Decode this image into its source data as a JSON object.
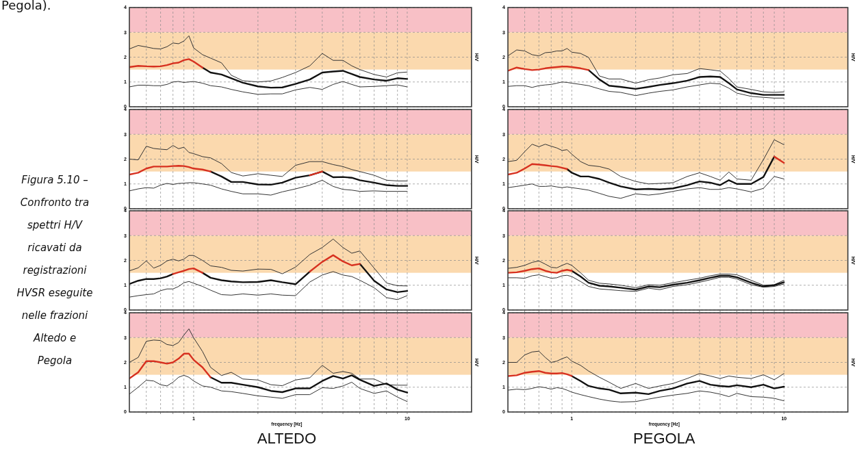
{
  "chart_data": [
    {
      "type": "line",
      "x": [
        0.5,
        0.55,
        0.6,
        0.65,
        0.7,
        0.75,
        0.8,
        0.85,
        0.9,
        0.95,
        1,
        1.1,
        1.2,
        1.35,
        1.5,
        1.7,
        2,
        2.3,
        2.6,
        3,
        3.5,
        4,
        4.5,
        5,
        5.5,
        6,
        7,
        8,
        9,
        10
      ],
      "xlim": [
        0.5,
        20
      ],
      "ylim": [
        0,
        4
      ],
      "log": "x",
      "grid": true,
      "tick_labels": "y",
      "ylabel": "H/V",
      "xticks": [
        {
          "value": 0.6,
          "label": null
        },
        {
          "value": 0.7,
          "label": null
        },
        {
          "value": 0.8,
          "label": null
        },
        {
          "value": 0.9,
          "label": null
        },
        {
          "value": 1,
          "label": null
        },
        {
          "value": 2,
          "label": null
        },
        {
          "value": 3,
          "label": null
        },
        {
          "value": 4,
          "label": null
        },
        {
          "value": 5,
          "label": null
        },
        {
          "value": 6,
          "label": null
        },
        {
          "value": 7,
          "label": null
        },
        {
          "value": 8,
          "label": null
        },
        {
          "value": 9,
          "label": null
        },
        {
          "value": 10,
          "label": null
        }
      ],
      "yticks": [
        0,
        1,
        2,
        3,
        4
      ],
      "bands": [
        {
          "axis": "y",
          "from": 3,
          "to": 4,
          "color": "#f8c0c6"
        },
        {
          "axis": "y",
          "from": 1.5,
          "to": 3,
          "color": "#fbd9ae"
        }
      ],
      "series": [
        {
          "color": "#333333",
          "values": [
            2.33,
            2.47,
            2.41,
            2.35,
            2.33,
            2.42,
            2.57,
            2.54,
            2.65,
            2.86,
            2.37,
            2.1,
            1.96,
            1.77,
            1.27,
            1.05,
            1.0,
            1.04,
            1.18,
            1.38,
            1.65,
            2.15,
            1.87,
            1.87,
            1.65,
            1.5,
            1.3,
            1.2,
            1.37,
            1.4
          ]
        },
        {
          "color": "#111111",
          "values": [
            null,
            null,
            null,
            null,
            null,
            null,
            null,
            null,
            null,
            null,
            null,
            1.58,
            1.38,
            1.3,
            1.15,
            0.97,
            0.82,
            0.77,
            0.78,
            0.92,
            1.1,
            1.38,
            1.42,
            1.45,
            1.32,
            1.2,
            1.1,
            1.05,
            1.15,
            1.12
          ]
        },
        {
          "color": "#333333",
          "values": [
            0.8,
            0.87,
            0.87,
            0.85,
            0.85,
            0.9,
            1.0,
            1.02,
            0.98,
            1.0,
            1.02,
            0.95,
            0.85,
            0.8,
            0.7,
            0.6,
            0.5,
            0.52,
            0.52,
            0.68,
            0.78,
            0.7,
            0.9,
            1.02,
            0.9,
            0.8,
            0.82,
            0.85,
            0.88,
            0.8
          ]
        },
        {
          "color": "#d7301f",
          "values": [
            1.6,
            1.65,
            1.63,
            1.62,
            1.63,
            1.68,
            1.75,
            1.78,
            1.88,
            1.92,
            1.82,
            1.58,
            null,
            null,
            null,
            null,
            null,
            null,
            null,
            null,
            null,
            null,
            null,
            null,
            null,
            null,
            null,
            null,
            null,
            null
          ]
        }
      ]
    },
    {
      "type": "line",
      "x": [
        0.5,
        0.55,
        0.6,
        0.65,
        0.7,
        0.75,
        0.8,
        0.85,
        0.9,
        0.95,
        1,
        1.1,
        1.2,
        1.35,
        1.5,
        1.7,
        2,
        2.3,
        2.6,
        3,
        3.5,
        4,
        4.5,
        5,
        5.5,
        6,
        7,
        8,
        9,
        10
      ],
      "xlim": [
        0.5,
        20
      ],
      "ylim": [
        0,
        4
      ],
      "log": "x",
      "grid": true,
      "tick_labels": "y",
      "ylabel": "H/V",
      "xticks": [
        {
          "value": 0.6,
          "label": null
        },
        {
          "value": 0.7,
          "label": null
        },
        {
          "value": 0.8,
          "label": null
        },
        {
          "value": 0.9,
          "label": null
        },
        {
          "value": 1,
          "label": null
        },
        {
          "value": 2,
          "label": null
        },
        {
          "value": 3,
          "label": null
        },
        {
          "value": 4,
          "label": null
        },
        {
          "value": 5,
          "label": null
        },
        {
          "value": 6,
          "label": null
        },
        {
          "value": 7,
          "label": null
        },
        {
          "value": 8,
          "label": null
        },
        {
          "value": 9,
          "label": null
        },
        {
          "value": 10,
          "label": null
        }
      ],
      "yticks": [
        0,
        1,
        2,
        3,
        4
      ],
      "bands": [
        {
          "axis": "y",
          "from": 3,
          "to": 4,
          "color": "#f8c0c6"
        },
        {
          "axis": "y",
          "from": 1.5,
          "to": 3,
          "color": "#fbd9ae"
        }
      ],
      "series": [
        {
          "color": "#333333",
          "values": [
            2.05,
            2.29,
            2.25,
            2.1,
            2.05,
            2.18,
            2.2,
            2.25,
            2.25,
            2.35,
            2.2,
            2.15,
            1.99,
            1.24,
            1.12,
            1.12,
            0.95,
            1.09,
            1.16,
            1.29,
            1.34,
            1.54,
            1.49,
            1.44,
            1.14,
            0.8,
            0.7,
            0.6,
            0.58,
            0.6
          ]
        },
        {
          "color": "#111111",
          "values": [
            null,
            null,
            null,
            null,
            null,
            null,
            null,
            null,
            null,
            null,
            null,
            null,
            1.48,
            1.1,
            0.85,
            0.8,
            0.72,
            0.8,
            0.88,
            0.95,
            1.05,
            1.2,
            1.22,
            1.2,
            0.95,
            0.7,
            0.55,
            0.48,
            0.48,
            0.48
          ]
        },
        {
          "color": "#333333",
          "values": [
            0.82,
            0.85,
            0.85,
            0.78,
            0.85,
            0.88,
            0.9,
            0.95,
            1.0,
            0.98,
            0.95,
            0.9,
            0.85,
            0.72,
            0.62,
            0.58,
            0.45,
            0.55,
            0.62,
            0.68,
            0.8,
            0.88,
            0.95,
            0.92,
            0.75,
            0.55,
            0.42,
            0.38,
            0.35,
            0.35
          ]
        },
        {
          "color": "#d7301f",
          "values": [
            1.45,
            1.58,
            1.52,
            1.48,
            1.5,
            1.55,
            1.58,
            1.6,
            1.62,
            1.62,
            1.6,
            1.55,
            1.48,
            null,
            null,
            null,
            null,
            null,
            null,
            null,
            null,
            null,
            null,
            null,
            null,
            null,
            null,
            null,
            null,
            null
          ]
        }
      ]
    },
    {
      "type": "line",
      "x": [
        0.5,
        0.55,
        0.6,
        0.65,
        0.7,
        0.75,
        0.8,
        0.85,
        0.9,
        0.95,
        1,
        1.1,
        1.2,
        1.35,
        1.5,
        1.7,
        2,
        2.3,
        2.6,
        3,
        3.5,
        4,
        4.5,
        5,
        5.5,
        6,
        7,
        8,
        9,
        10
      ],
      "xlim": [
        0.5,
        20
      ],
      "ylim": [
        0,
        4
      ],
      "log": "x",
      "grid": true,
      "tick_labels": "y",
      "ylabel": "H/V",
      "xticks": [
        {
          "value": 0.6,
          "label": null
        },
        {
          "value": 0.7,
          "label": null
        },
        {
          "value": 0.8,
          "label": null
        },
        {
          "value": 0.9,
          "label": null
        },
        {
          "value": 1,
          "label": null
        },
        {
          "value": 2,
          "label": null
        },
        {
          "value": 3,
          "label": null
        },
        {
          "value": 4,
          "label": null
        },
        {
          "value": 5,
          "label": null
        },
        {
          "value": 6,
          "label": null
        },
        {
          "value": 7,
          "label": null
        },
        {
          "value": 8,
          "label": null
        },
        {
          "value": 9,
          "label": null
        },
        {
          "value": 10,
          "label": null
        }
      ],
      "yticks": [
        0,
        1,
        2,
        3,
        4
      ],
      "bands": [
        {
          "axis": "y",
          "from": 3,
          "to": 4,
          "color": "#f8c0c6"
        },
        {
          "axis": "y",
          "from": 1.5,
          "to": 3,
          "color": "#fbd9ae"
        }
      ],
      "series": [
        {
          "color": "#333333",
          "values": [
            2.0,
            1.97,
            2.52,
            2.43,
            2.4,
            2.38,
            2.55,
            2.42,
            2.48,
            2.27,
            2.22,
            2.1,
            2.05,
            1.82,
            1.46,
            1.32,
            1.41,
            1.35,
            1.3,
            1.75,
            1.9,
            1.9,
            1.78,
            1.7,
            1.58,
            1.5,
            1.35,
            1.15,
            1.12,
            1.12
          ]
        },
        {
          "color": "#111111",
          "values": [
            null,
            null,
            null,
            null,
            null,
            null,
            null,
            null,
            null,
            null,
            null,
            null,
            1.5,
            1.3,
            1.08,
            1.08,
            0.98,
            0.97,
            1.05,
            1.25,
            1.35,
            1.5,
            1.27,
            1.28,
            1.25,
            1.15,
            1.05,
            0.95,
            0.92,
            0.92
          ]
        },
        {
          "color": "#333333",
          "values": [
            0.72,
            0.8,
            0.85,
            0.83,
            0.95,
            1.02,
            0.98,
            1.02,
            1.03,
            1.05,
            1.05,
            1.0,
            0.95,
            0.8,
            0.7,
            0.6,
            0.6,
            0.55,
            0.68,
            0.8,
            0.95,
            1.15,
            0.9,
            0.78,
            0.75,
            0.7,
            0.72,
            0.7,
            0.7,
            0.7
          ]
        },
        {
          "color": "#d7301f",
          "values": [
            1.38,
            1.45,
            1.62,
            1.7,
            1.7,
            1.7,
            1.72,
            1.73,
            1.72,
            1.68,
            1.62,
            1.58,
            1.5,
            null,
            null,
            null,
            null,
            null,
            null,
            null,
            1.35,
            1.5,
            null,
            null,
            null,
            null,
            null,
            null,
            null,
            null
          ]
        }
      ]
    },
    {
      "type": "line",
      "x": [
        0.5,
        0.55,
        0.6,
        0.65,
        0.7,
        0.75,
        0.8,
        0.85,
        0.9,
        0.95,
        1,
        1.1,
        1.2,
        1.35,
        1.5,
        1.7,
        2,
        2.3,
        2.6,
        3,
        3.5,
        4,
        4.5,
        5,
        5.5,
        6,
        7,
        8,
        9,
        10
      ],
      "xlim": [
        0.5,
        20
      ],
      "ylim": [
        0,
        4
      ],
      "log": "x",
      "grid": true,
      "tick_labels": "y",
      "ylabel": "H/V",
      "xticks": [
        {
          "value": 0.6,
          "label": null
        },
        {
          "value": 0.7,
          "label": null
        },
        {
          "value": 0.8,
          "label": null
        },
        {
          "value": 0.9,
          "label": null
        },
        {
          "value": 1,
          "label": null
        },
        {
          "value": 2,
          "label": null
        },
        {
          "value": 3,
          "label": null
        },
        {
          "value": 4,
          "label": null
        },
        {
          "value": 5,
          "label": null
        },
        {
          "value": 6,
          "label": null
        },
        {
          "value": 7,
          "label": null
        },
        {
          "value": 8,
          "label": null
        },
        {
          "value": 9,
          "label": null
        },
        {
          "value": 10,
          "label": null
        }
      ],
      "yticks": [
        0,
        1,
        2,
        3,
        4
      ],
      "bands": [
        {
          "axis": "y",
          "from": 3,
          "to": 4,
          "color": "#f8c0c6"
        },
        {
          "axis": "y",
          "from": 1.5,
          "to": 3,
          "color": "#fbd9ae"
        }
      ],
      "series": [
        {
          "color": "#333333",
          "values": [
            1.9,
            1.95,
            2.3,
            2.6,
            2.5,
            2.6,
            2.52,
            2.45,
            2.35,
            2.38,
            2.2,
            1.9,
            1.75,
            1.7,
            1.6,
            1.3,
            1.1,
            1.0,
            1.02,
            1.05,
            1.3,
            1.45,
            1.3,
            1.15,
            1.48,
            1.2,
            1.15,
            1.98,
            2.78,
            2.58
          ]
        },
        {
          "color": "#111111",
          "values": [
            null,
            null,
            null,
            null,
            null,
            null,
            null,
            null,
            null,
            1.6,
            1.45,
            1.3,
            1.3,
            1.2,
            1.05,
            0.9,
            0.78,
            0.8,
            0.78,
            0.82,
            0.95,
            1.1,
            1.05,
            0.95,
            1.15,
            1.0,
            1.0,
            1.28,
            2.1,
            null
          ]
        },
        {
          "color": "#333333",
          "values": [
            0.85,
            0.9,
            0.95,
            1.0,
            0.9,
            0.9,
            0.92,
            0.88,
            0.85,
            0.88,
            0.85,
            0.8,
            0.75,
            0.62,
            0.5,
            0.42,
            0.6,
            0.55,
            0.6,
            0.7,
            0.8,
            0.85,
            0.78,
            0.78,
            0.85,
            0.8,
            0.68,
            0.82,
            1.3,
            1.2
          ]
        },
        {
          "color": "#d7301f",
          "values": [
            1.38,
            1.45,
            1.62,
            1.8,
            1.78,
            1.75,
            1.72,
            1.7,
            1.65,
            1.6,
            null,
            null,
            null,
            null,
            null,
            null,
            null,
            null,
            null,
            null,
            null,
            null,
            null,
            null,
            null,
            null,
            null,
            null,
            2.1,
            1.85
          ]
        }
      ]
    },
    {
      "type": "line",
      "x": [
        0.5,
        0.55,
        0.6,
        0.65,
        0.7,
        0.75,
        0.8,
        0.85,
        0.9,
        0.95,
        1,
        1.1,
        1.2,
        1.35,
        1.5,
        1.7,
        2,
        2.3,
        2.6,
        3,
        3.5,
        4,
        4.5,
        5,
        5.5,
        6,
        7,
        8,
        9,
        10
      ],
      "xlim": [
        0.5,
        20
      ],
      "ylim": [
        0,
        4
      ],
      "log": "x",
      "grid": true,
      "tick_labels": "y",
      "ylabel": "H/V",
      "xticks": [
        {
          "value": 0.6,
          "label": null
        },
        {
          "value": 0.7,
          "label": null
        },
        {
          "value": 0.8,
          "label": null
        },
        {
          "value": 0.9,
          "label": null
        },
        {
          "value": 1,
          "label": null
        },
        {
          "value": 2,
          "label": null
        },
        {
          "value": 3,
          "label": null
        },
        {
          "value": 4,
          "label": null
        },
        {
          "value": 5,
          "label": null
        },
        {
          "value": 6,
          "label": null
        },
        {
          "value": 7,
          "label": null
        },
        {
          "value": 8,
          "label": null
        },
        {
          "value": 9,
          "label": null
        },
        {
          "value": 10,
          "label": null
        }
      ],
      "yticks": [
        0,
        1,
        2,
        3,
        4
      ],
      "bands": [
        {
          "axis": "y",
          "from": 3,
          "to": 4,
          "color": "#f8c0c6"
        },
        {
          "axis": "y",
          "from": 1.5,
          "to": 3,
          "color": "#fbd9ae"
        }
      ],
      "series": [
        {
          "color": "#333333",
          "values": [
            1.58,
            1.7,
            1.98,
            1.69,
            1.8,
            1.98,
            2.05,
            1.98,
            2.05,
            2.2,
            2.2,
            2.0,
            1.78,
            1.72,
            1.6,
            1.57,
            1.65,
            1.64,
            1.46,
            1.73,
            2.24,
            2.52,
            2.86,
            2.52,
            2.29,
            2.38,
            1.69,
            1.09,
            0.98,
            0.97
          ]
        },
        {
          "color": "#111111",
          "values": [
            1.05,
            1.18,
            1.25,
            1.25,
            1.28,
            1.35,
            1.45,
            null,
            null,
            null,
            null,
            1.5,
            1.3,
            1.2,
            1.15,
            1.12,
            1.13,
            1.2,
            1.12,
            1.04,
            1.55,
            null,
            null,
            null,
            null,
            1.86,
            1.18,
            0.83,
            0.72,
            0.77
          ]
        },
        {
          "color": "#333333",
          "values": [
            0.52,
            0.58,
            0.62,
            0.65,
            0.78,
            0.85,
            0.85,
            0.95,
            1.1,
            1.15,
            1.08,
            0.95,
            0.8,
            0.62,
            0.6,
            0.65,
            0.6,
            0.65,
            0.6,
            0.58,
            1.13,
            1.41,
            1.55,
            1.41,
            1.35,
            1.2,
            0.9,
            0.5,
            0.42,
            0.58
          ]
        },
        {
          "color": "#d7301f",
          "values": [
            null,
            null,
            null,
            null,
            null,
            null,
            1.45,
            1.52,
            1.58,
            1.65,
            1.68,
            1.5,
            null,
            null,
            null,
            null,
            null,
            null,
            null,
            null,
            1.55,
            1.94,
            2.21,
            1.96,
            1.8,
            1.86,
            null,
            null,
            null,
            null
          ]
        }
      ]
    },
    {
      "type": "line",
      "x": [
        0.5,
        0.55,
        0.6,
        0.65,
        0.7,
        0.75,
        0.8,
        0.85,
        0.9,
        0.95,
        1,
        1.1,
        1.2,
        1.35,
        1.5,
        1.7,
        2,
        2.3,
        2.6,
        3,
        3.5,
        4,
        4.5,
        5,
        5.5,
        6,
        7,
        8,
        9,
        10
      ],
      "xlim": [
        0.5,
        20
      ],
      "ylim": [
        0,
        4
      ],
      "log": "x",
      "grid": true,
      "tick_labels": "y",
      "ylabel": "H/V",
      "xticks": [
        {
          "value": 0.6,
          "label": null
        },
        {
          "value": 0.7,
          "label": null
        },
        {
          "value": 0.8,
          "label": null
        },
        {
          "value": 0.9,
          "label": null
        },
        {
          "value": 1,
          "label": null
        },
        {
          "value": 2,
          "label": null
        },
        {
          "value": 3,
          "label": null
        },
        {
          "value": 4,
          "label": null
        },
        {
          "value": 5,
          "label": null
        },
        {
          "value": 6,
          "label": null
        },
        {
          "value": 7,
          "label": null
        },
        {
          "value": 8,
          "label": null
        },
        {
          "value": 9,
          "label": null
        },
        {
          "value": 10,
          "label": null
        }
      ],
      "yticks": [
        0,
        1,
        2,
        3,
        4
      ],
      "bands": [
        {
          "axis": "y",
          "from": 3,
          "to": 4,
          "color": "#f8c0c6"
        },
        {
          "axis": "y",
          "from": 1.5,
          "to": 3,
          "color": "#fbd9ae"
        }
      ],
      "series": [
        {
          "color": "#333333",
          "values": [
            1.68,
            1.72,
            1.8,
            1.92,
            1.98,
            1.85,
            1.72,
            1.7,
            1.8,
            1.88,
            1.8,
            1.5,
            1.2,
            1.08,
            1.05,
            1.0,
            0.9,
            1.02,
            1.0,
            1.1,
            1.2,
            1.28,
            1.38,
            1.45,
            1.45,
            1.42,
            1.2,
            1.0,
            1.02,
            1.2
          ]
        },
        {
          "color": "#111111",
          "values": [
            null,
            null,
            null,
            null,
            null,
            null,
            null,
            null,
            null,
            null,
            1.58,
            1.35,
            1.1,
            0.98,
            0.95,
            0.9,
            0.82,
            0.95,
            0.92,
            1.02,
            1.1,
            1.2,
            1.3,
            1.38,
            1.38,
            1.32,
            1.1,
            0.95,
            1.0,
            1.12
          ]
        },
        {
          "color": "#333333",
          "values": [
            1.3,
            1.3,
            1.28,
            1.38,
            1.42,
            1.35,
            1.28,
            1.3,
            1.38,
            1.4,
            1.35,
            1.15,
            0.95,
            0.85,
            0.82,
            0.78,
            0.75,
            0.88,
            0.82,
            0.95,
            1.02,
            1.12,
            1.22,
            1.32,
            1.32,
            1.25,
            1.02,
            0.92,
            0.95,
            1.05
          ]
        },
        {
          "color": "#d7301f",
          "values": [
            1.5,
            1.52,
            1.58,
            1.65,
            1.68,
            1.58,
            1.52,
            1.5,
            1.58,
            1.62,
            1.58,
            null,
            null,
            null,
            null,
            null,
            null,
            null,
            null,
            null,
            null,
            null,
            null,
            null,
            null,
            null,
            null,
            null,
            null,
            null
          ]
        }
      ]
    },
    {
      "type": "line",
      "x": [
        0.5,
        0.55,
        0.6,
        0.65,
        0.7,
        0.75,
        0.8,
        0.85,
        0.9,
        0.95,
        1,
        1.1,
        1.2,
        1.35,
        1.5,
        1.7,
        2,
        2.3,
        2.6,
        3,
        3.5,
        4,
        4.5,
        5,
        5.5,
        6,
        7,
        8,
        9,
        10
      ],
      "xlim": [
        0.5,
        20
      ],
      "ylim": [
        0,
        4
      ],
      "log": "x",
      "grid": true,
      "ylabel": "H/V",
      "xlabel": "frequency [Hz]",
      "annotations": [
        "ALTEDO"
      ],
      "xticks": [
        {
          "value": 0.6,
          "label": null
        },
        {
          "value": 0.7,
          "label": null
        },
        {
          "value": 0.8,
          "label": null
        },
        {
          "value": 0.9,
          "label": null
        },
        {
          "value": 1,
          "label": "1"
        },
        {
          "value": 2,
          "label": null
        },
        {
          "value": 3,
          "label": null
        },
        {
          "value": 4,
          "label": null
        },
        {
          "value": 5,
          "label": null
        },
        {
          "value": 6,
          "label": null
        },
        {
          "value": 7,
          "label": null
        },
        {
          "value": 8,
          "label": null
        },
        {
          "value": 9,
          "label": null
        },
        {
          "value": 10,
          "label": "10"
        }
      ],
      "yticks": [
        0,
        1,
        2,
        3,
        4
      ],
      "bands": [
        {
          "axis": "y",
          "from": 3,
          "to": 4,
          "color": "#f8c0c6"
        },
        {
          "axis": "y",
          "from": 1.5,
          "to": 3,
          "color": "#fbd9ae"
        }
      ],
      "series": [
        {
          "color": "#333333",
          "values": [
            2.0,
            2.2,
            2.85,
            2.9,
            2.88,
            2.72,
            2.68,
            2.8,
            3.1,
            3.35,
            2.99,
            2.44,
            1.8,
            1.47,
            1.6,
            1.33,
            1.29,
            1.1,
            1.06,
            1.29,
            1.38,
            1.88,
            1.56,
            1.63,
            1.56,
            1.33,
            1.33,
            1.1,
            1.08,
            1.08
          ]
        },
        {
          "color": "#111111",
          "values": [
            null,
            null,
            null,
            null,
            null,
            null,
            null,
            null,
            null,
            null,
            null,
            null,
            1.4,
            1.18,
            1.18,
            1.1,
            1.0,
            0.85,
            0.8,
            0.95,
            0.95,
            1.25,
            1.45,
            1.35,
            1.48,
            1.3,
            1.05,
            1.15,
            0.9,
            0.78
          ]
        },
        {
          "color": "#333333",
          "values": [
            0.72,
            1.0,
            1.28,
            1.25,
            1.1,
            1.05,
            1.2,
            1.4,
            1.48,
            1.4,
            1.25,
            1.05,
            1.0,
            0.85,
            0.82,
            0.75,
            0.65,
            0.6,
            0.55,
            0.7,
            0.7,
            0.98,
            0.95,
            1.05,
            1.2,
            0.95,
            0.75,
            0.85,
            0.6,
            0.42
          ]
        },
        {
          "color": "#d7301f",
          "values": [
            1.35,
            1.6,
            2.05,
            2.05,
            2.0,
            1.95,
            2.0,
            2.15,
            2.35,
            2.35,
            2.1,
            1.8,
            1.4,
            null,
            null,
            null,
            null,
            null,
            null,
            null,
            null,
            null,
            null,
            null,
            null,
            null,
            null,
            null,
            null,
            null
          ]
        }
      ]
    },
    {
      "type": "line",
      "x": [
        0.5,
        0.55,
        0.6,
        0.65,
        0.7,
        0.75,
        0.8,
        0.85,
        0.9,
        0.95,
        1,
        1.1,
        1.2,
        1.35,
        1.5,
        1.7,
        2,
        2.3,
        2.6,
        3,
        3.5,
        4,
        4.5,
        5,
        5.5,
        6,
        7,
        8,
        9,
        10
      ],
      "xlim": [
        0.5,
        20
      ],
      "ylim": [
        0,
        4
      ],
      "log": "x",
      "grid": true,
      "ylabel": "H/V",
      "xlabel": "frequency [Hz]",
      "annotations": [
        "PEGOLA"
      ],
      "xticks": [
        {
          "value": 0.6,
          "label": null
        },
        {
          "value": 0.7,
          "label": null
        },
        {
          "value": 0.8,
          "label": null
        },
        {
          "value": 0.9,
          "label": null
        },
        {
          "value": 1,
          "label": "1"
        },
        {
          "value": 2,
          "label": null
        },
        {
          "value": 3,
          "label": null
        },
        {
          "value": 4,
          "label": null
        },
        {
          "value": 5,
          "label": null
        },
        {
          "value": 6,
          "label": null
        },
        {
          "value": 7,
          "label": null
        },
        {
          "value": 8,
          "label": null
        },
        {
          "value": 9,
          "label": null
        },
        {
          "value": 10,
          "label": "10"
        }
      ],
      "yticks": [
        0,
        1,
        2,
        3,
        4
      ],
      "bands": [
        {
          "axis": "y",
          "from": 3,
          "to": 4,
          "color": "#f8c0c6"
        },
        {
          "axis": "y",
          "from": 1.5,
          "to": 3,
          "color": "#fbd9ae"
        }
      ],
      "series": [
        {
          "color": "#333333",
          "values": [
            2.0,
            2.0,
            2.3,
            2.42,
            2.45,
            2.2,
            2.0,
            2.05,
            2.15,
            2.22,
            2.05,
            1.88,
            1.65,
            1.4,
            1.2,
            0.95,
            1.15,
            0.95,
            1.05,
            1.15,
            1.35,
            1.55,
            1.45,
            1.35,
            1.45,
            1.4,
            1.35,
            1.5,
            1.3,
            1.55
          ]
        },
        {
          "color": "#111111",
          "values": [
            null,
            null,
            null,
            null,
            null,
            null,
            null,
            null,
            null,
            null,
            1.45,
            1.25,
            1.05,
            0.95,
            0.9,
            0.75,
            0.78,
            0.72,
            0.85,
            0.95,
            1.15,
            1.25,
            1.1,
            1.05,
            1.02,
            1.08,
            1.0,
            1.1,
            0.95,
            1.02
          ]
        },
        {
          "color": "#333333",
          "values": [
            0.88,
            0.92,
            0.9,
            0.95,
            1.02,
            0.98,
            0.92,
            0.98,
            0.95,
            0.88,
            0.8,
            0.7,
            0.62,
            0.52,
            0.45,
            0.4,
            0.42,
            0.52,
            0.6,
            0.68,
            0.75,
            0.85,
            0.8,
            0.72,
            0.62,
            0.75,
            0.62,
            0.6,
            0.55,
            0.45
          ]
        },
        {
          "color": "#d7301f",
          "values": [
            1.45,
            1.48,
            1.58,
            1.62,
            1.65,
            1.58,
            1.55,
            1.55,
            1.57,
            1.52,
            1.45,
            null,
            null,
            null,
            null,
            null,
            null,
            null,
            null,
            null,
            null,
            null,
            null,
            null,
            null,
            null,
            null,
            null,
            null,
            null
          ]
        }
      ]
    },
    {
      "type": "other",
      "annotations": [
        "Pegola).",
        "Figura 5.10 – Confronto tra spettri H/V ricavati da registrazioni HVSR eseguite nelle frazioni Altedo e Pegola"
      ]
    }
  ]
}
